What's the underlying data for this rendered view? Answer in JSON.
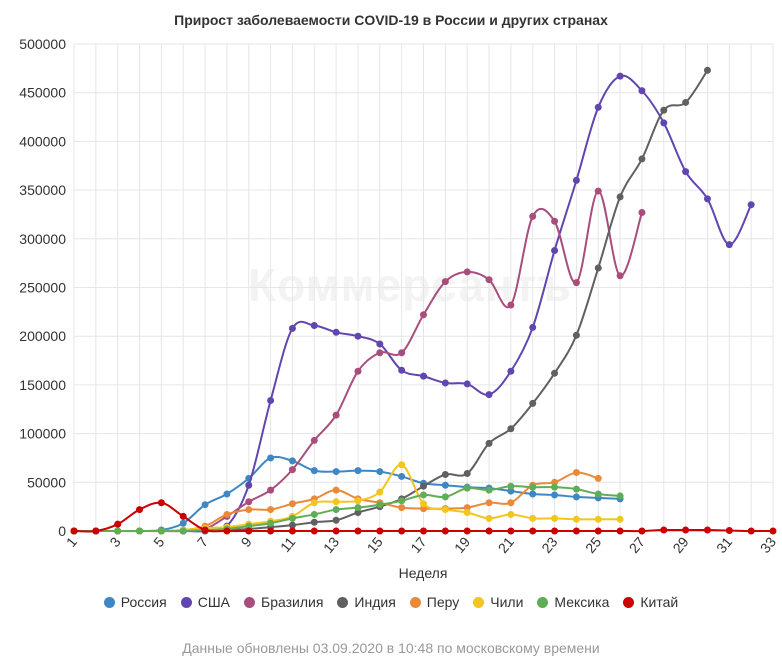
{
  "chart_data": {
    "type": "line",
    "title": "Прирост заболеваемости COVID-19 в России и других странах",
    "xlabel": "Неделя",
    "ylabel": "",
    "xlim": [
      1,
      33
    ],
    "ylim": [
      0,
      500000
    ],
    "x_ticks": [
      1,
      3,
      5,
      7,
      9,
      11,
      13,
      15,
      17,
      19,
      21,
      23,
      25,
      27,
      29,
      31,
      33
    ],
    "y_ticks": [
      0,
      50000,
      100000,
      150000,
      200000,
      250000,
      300000,
      350000,
      400000,
      450000,
      500000
    ],
    "grid": true,
    "legend_position": "bottom",
    "series": [
      {
        "name": "Россия",
        "color": "#3f87c4",
        "points": [
          [
            1,
            0
          ],
          [
            2,
            0
          ],
          [
            3,
            0
          ],
          [
            4,
            0
          ],
          [
            5,
            1000
          ],
          [
            6,
            8000
          ],
          [
            7,
            27000
          ],
          [
            8,
            38000
          ],
          [
            9,
            54000
          ],
          [
            10,
            75000
          ],
          [
            11,
            72000
          ],
          [
            12,
            62000
          ],
          [
            13,
            61000
          ],
          [
            14,
            62000
          ],
          [
            15,
            61000
          ],
          [
            16,
            56000
          ],
          [
            17,
            49000
          ],
          [
            18,
            47000
          ],
          [
            19,
            45000
          ],
          [
            20,
            44000
          ],
          [
            21,
            41000
          ],
          [
            22,
            38000
          ],
          [
            23,
            37000
          ],
          [
            24,
            35000
          ],
          [
            25,
            34000
          ],
          [
            26,
            33000
          ]
        ]
      },
      {
        "name": "США",
        "color": "#6146b0",
        "points": [
          [
            1,
            0
          ],
          [
            2,
            0
          ],
          [
            3,
            0
          ],
          [
            4,
            0
          ],
          [
            5,
            0
          ],
          [
            6,
            0
          ],
          [
            7,
            0
          ],
          [
            8,
            5000
          ],
          [
            9,
            47000
          ],
          [
            10,
            134000
          ],
          [
            11,
            208000
          ],
          [
            12,
            211000
          ],
          [
            13,
            204000
          ],
          [
            14,
            200000
          ],
          [
            15,
            192000
          ],
          [
            16,
            165000
          ],
          [
            17,
            159000
          ],
          [
            18,
            152000
          ],
          [
            19,
            151000
          ],
          [
            20,
            140000
          ],
          [
            21,
            164000
          ],
          [
            22,
            209000
          ],
          [
            23,
            288000
          ],
          [
            24,
            360000
          ],
          [
            25,
            435000
          ],
          [
            26,
            467000
          ],
          [
            27,
            452000
          ],
          [
            28,
            419000
          ],
          [
            29,
            369000
          ],
          [
            30,
            341000
          ],
          [
            31,
            294000
          ],
          [
            32,
            335000
          ]
        ]
      },
      {
        "name": "Бразилия",
        "color": "#a94d7d",
        "points": [
          [
            1,
            0
          ],
          [
            2,
            0
          ],
          [
            3,
            0
          ],
          [
            4,
            0
          ],
          [
            5,
            0
          ],
          [
            6,
            0
          ],
          [
            7,
            2000
          ],
          [
            8,
            15000
          ],
          [
            9,
            30000
          ],
          [
            10,
            42000
          ],
          [
            11,
            63000
          ],
          [
            12,
            93000
          ],
          [
            13,
            119000
          ],
          [
            14,
            164000
          ],
          [
            15,
            183000
          ],
          [
            16,
            183000
          ],
          [
            17,
            222000
          ],
          [
            18,
            256000
          ],
          [
            19,
            266000
          ],
          [
            20,
            258000
          ],
          [
            21,
            232000
          ],
          [
            22,
            323000
          ],
          [
            23,
            318000
          ],
          [
            24,
            255000
          ],
          [
            25,
            349000
          ],
          [
            26,
            262000
          ],
          [
            27,
            327000
          ]
        ]
      },
      {
        "name": "Индия",
        "color": "#606060",
        "points": [
          [
            1,
            0
          ],
          [
            2,
            0
          ],
          [
            3,
            0
          ],
          [
            4,
            0
          ],
          [
            5,
            0
          ],
          [
            6,
            0
          ],
          [
            7,
            0
          ],
          [
            8,
            1000
          ],
          [
            9,
            2000
          ],
          [
            10,
            4000
          ],
          [
            11,
            6000
          ],
          [
            12,
            9000
          ],
          [
            13,
            11000
          ],
          [
            14,
            19000
          ],
          [
            15,
            25000
          ],
          [
            16,
            33000
          ],
          [
            17,
            46000
          ],
          [
            18,
            58000
          ],
          [
            19,
            59000
          ],
          [
            20,
            90000
          ],
          [
            21,
            105000
          ],
          [
            22,
            131000
          ],
          [
            23,
            162000
          ],
          [
            24,
            201000
          ],
          [
            25,
            270000
          ],
          [
            26,
            343000
          ],
          [
            27,
            382000
          ],
          [
            28,
            432000
          ],
          [
            29,
            440000
          ],
          [
            30,
            473000
          ]
        ]
      },
      {
        "name": "Перу",
        "color": "#e98a3a",
        "points": [
          [
            1,
            0
          ],
          [
            2,
            0
          ],
          [
            3,
            0
          ],
          [
            4,
            0
          ],
          [
            5,
            0
          ],
          [
            6,
            1000
          ],
          [
            7,
            5000
          ],
          [
            8,
            17000
          ],
          [
            9,
            22000
          ],
          [
            10,
            22000
          ],
          [
            11,
            28000
          ],
          [
            12,
            33000
          ],
          [
            13,
            42000
          ],
          [
            14,
            33000
          ],
          [
            15,
            29000
          ],
          [
            16,
            24000
          ],
          [
            17,
            23000
          ],
          [
            18,
            23000
          ],
          [
            19,
            24000
          ],
          [
            20,
            29000
          ],
          [
            21,
            29000
          ],
          [
            22,
            47000
          ],
          [
            23,
            50000
          ],
          [
            24,
            60000
          ],
          [
            25,
            54000
          ]
        ]
      },
      {
        "name": "Чили",
        "color": "#f2c51f",
        "points": [
          [
            1,
            0
          ],
          [
            2,
            0
          ],
          [
            3,
            0
          ],
          [
            4,
            0
          ],
          [
            5,
            0
          ],
          [
            6,
            1000
          ],
          [
            7,
            3000
          ],
          [
            8,
            4000
          ],
          [
            9,
            7000
          ],
          [
            10,
            10000
          ],
          [
            11,
            15000
          ],
          [
            12,
            29000
          ],
          [
            13,
            30000
          ],
          [
            14,
            31000
          ],
          [
            15,
            40000
          ],
          [
            16,
            68000
          ],
          [
            17,
            28000
          ],
          [
            18,
            22000
          ],
          [
            19,
            19000
          ],
          [
            20,
            13000
          ],
          [
            21,
            17000
          ],
          [
            22,
            13000
          ],
          [
            23,
            13000
          ],
          [
            24,
            12000
          ],
          [
            25,
            12000
          ],
          [
            26,
            12000
          ]
        ]
      },
      {
        "name": "Мексика",
        "color": "#5fad56",
        "points": [
          [
            1,
            0
          ],
          [
            2,
            0
          ],
          [
            3,
            0
          ],
          [
            4,
            0
          ],
          [
            5,
            0
          ],
          [
            6,
            0
          ],
          [
            7,
            1000
          ],
          [
            8,
            2000
          ],
          [
            9,
            5000
          ],
          [
            10,
            8000
          ],
          [
            11,
            13000
          ],
          [
            12,
            17000
          ],
          [
            13,
            22000
          ],
          [
            14,
            24000
          ],
          [
            15,
            27000
          ],
          [
            16,
            31000
          ],
          [
            17,
            37000
          ],
          [
            18,
            35000
          ],
          [
            19,
            44000
          ],
          [
            20,
            42000
          ],
          [
            21,
            46000
          ],
          [
            22,
            45000
          ],
          [
            23,
            45000
          ],
          [
            24,
            43000
          ],
          [
            25,
            38000
          ],
          [
            26,
            36000
          ]
        ]
      },
      {
        "name": "Китай",
        "color": "#cc0000",
        "points": [
          [
            1,
            0
          ],
          [
            2,
            0
          ],
          [
            3,
            7000
          ],
          [
            4,
            22000
          ],
          [
            5,
            29000
          ],
          [
            6,
            15000
          ],
          [
            7,
            1000
          ],
          [
            8,
            0
          ],
          [
            9,
            0
          ],
          [
            10,
            0
          ],
          [
            11,
            0
          ],
          [
            12,
            0
          ],
          [
            13,
            0
          ],
          [
            14,
            0
          ],
          [
            15,
            0
          ],
          [
            16,
            0
          ],
          [
            17,
            0
          ],
          [
            18,
            0
          ],
          [
            19,
            0
          ],
          [
            20,
            0
          ],
          [
            21,
            0
          ],
          [
            22,
            0
          ],
          [
            23,
            0
          ],
          [
            24,
            0
          ],
          [
            25,
            0
          ],
          [
            26,
            0
          ],
          [
            27,
            0
          ],
          [
            28,
            1000
          ],
          [
            29,
            1000
          ],
          [
            30,
            1000
          ],
          [
            31,
            500
          ],
          [
            32,
            0
          ],
          [
            33,
            0
          ]
        ]
      }
    ]
  },
  "footnote": "Данные обновлены 03.09.2020 в 10:48 по московскому времени",
  "watermark": "Коммерсантъ"
}
